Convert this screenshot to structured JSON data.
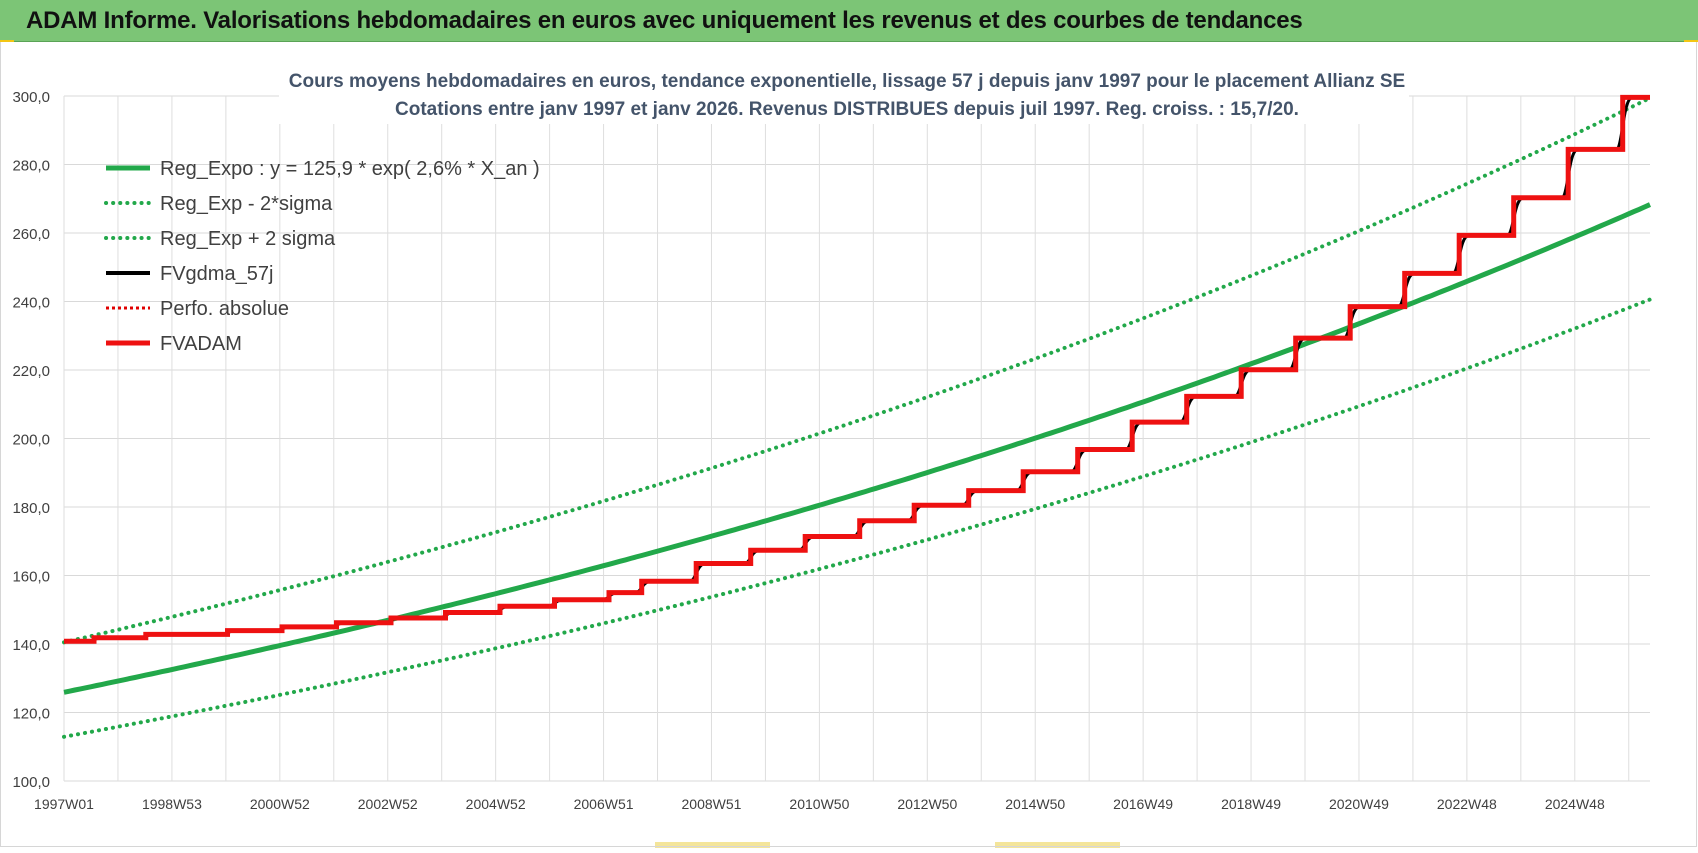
{
  "banner": {
    "title": "ADAM Informe. Valorisations hebdomadaires en euros avec uniquement les revenus et des courbes de tendances"
  },
  "colors": {
    "banner_bg": "#7cc576",
    "trend_green": "#22a84a",
    "smooth_black": "#000000",
    "perf_red": "#e00000",
    "fvadam_red": "#ee1111",
    "grid": "#d9d9d9"
  },
  "chart_data": {
    "type": "line",
    "title_line1": "Cours moyens hebdomadaires en euros, tendance exponentielle, lissage 57 j depuis janv 1997  pour le placement Allianz SE",
    "title_line2": "Cotations entre janv 1997 et janv 2026. Revenus DISTRIBUES depuis juil 1997. Reg. croiss. : 15,7/20.",
    "xlabel": "",
    "ylabel": "",
    "ylim": [
      100,
      300
    ],
    "y_ticks": [
      "100,0",
      "120,0",
      "140,0",
      "160,0",
      "180,0",
      "200,0",
      "220,0",
      "240,0",
      "260,0",
      "280,0",
      "300,0"
    ],
    "x_range_years": [
      1997.0,
      2026.1
    ],
    "x_tick_labels": [
      "1997W01",
      "1998W53",
      "2000W52",
      "2002W52",
      "2004W52",
      "2006W51",
      "2008W51",
      "2010W50",
      "2012W50",
      "2014W50",
      "2016W49",
      "2018W49",
      "2020W49",
      "2022W48",
      "2024W48"
    ],
    "grid": true,
    "legend_position": "top-left",
    "series": [
      {
        "name": "Reg_Expo : y = 125,9 * exp( 2,6% *  X_an )",
        "style": "solid-thick",
        "color": "#22a84a",
        "formula": {
          "a": 125.9,
          "rate": 0.026
        }
      },
      {
        "name": "Reg_Exp - 2*sigma",
        "style": "dotted",
        "color": "#22a84a",
        "formula": {
          "a": 140.5,
          "rate": 0.026
        }
      },
      {
        "name": "Reg_Exp + 2 sigma",
        "style": "dotted",
        "color": "#22a84a",
        "formula": {
          "a": 112.9,
          "rate": 0.026
        }
      },
      {
        "name": "FVgdma_57j",
        "style": "solid",
        "color": "#000000"
      },
      {
        "name": "Perfo. absolue",
        "style": "dotted",
        "color": "#e00000"
      },
      {
        "name": "FVADAM",
        "style": "solid-thick",
        "color": "#ee1111",
        "steps": [
          {
            "x": 1997.0,
            "y": 140.8
          },
          {
            "x": 1997.55,
            "y": 141.8
          },
          {
            "x": 1998.5,
            "y": 142.8
          },
          {
            "x": 2000.0,
            "y": 143.9
          },
          {
            "x": 2001.0,
            "y": 145.0
          },
          {
            "x": 2002.0,
            "y": 146.2
          },
          {
            "x": 2003.0,
            "y": 147.6
          },
          {
            "x": 2004.0,
            "y": 149.2
          },
          {
            "x": 2005.0,
            "y": 151.0
          },
          {
            "x": 2006.0,
            "y": 152.9
          },
          {
            "x": 2007.0,
            "y": 155.0
          },
          {
            "x": 2007.6,
            "y": 158.3
          },
          {
            "x": 2008.6,
            "y": 163.5
          },
          {
            "x": 2009.6,
            "y": 167.4
          },
          {
            "x": 2010.6,
            "y": 171.4
          },
          {
            "x": 2011.6,
            "y": 176.0
          },
          {
            "x": 2012.6,
            "y": 180.5
          },
          {
            "x": 2013.6,
            "y": 184.8
          },
          {
            "x": 2014.6,
            "y": 190.3
          },
          {
            "x": 2015.6,
            "y": 196.8
          },
          {
            "x": 2016.6,
            "y": 204.8
          },
          {
            "x": 2017.6,
            "y": 212.3
          },
          {
            "x": 2018.6,
            "y": 220.1
          },
          {
            "x": 2019.6,
            "y": 229.3
          },
          {
            "x": 2020.6,
            "y": 238.5
          },
          {
            "x": 2021.6,
            "y": 248.2
          },
          {
            "x": 2022.6,
            "y": 259.3
          },
          {
            "x": 2023.6,
            "y": 270.3
          },
          {
            "x": 2024.6,
            "y": 284.4
          },
          {
            "x": 2025.6,
            "y": 299.6
          }
        ],
        "end_x": 2026.1
      }
    ]
  }
}
